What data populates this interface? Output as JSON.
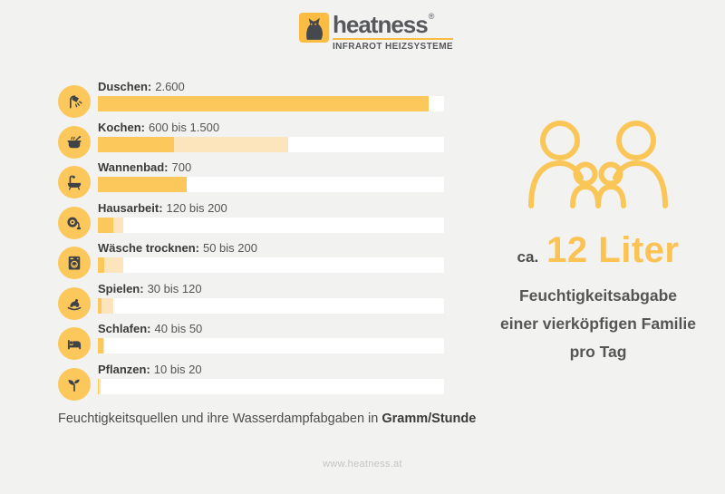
{
  "colors": {
    "accent": "#FCC75B",
    "accent_light": "#FCE5BD",
    "logo_yellow": "#FBBC43",
    "text_dark": "#3b3b3b",
    "background": "#F2F2F1",
    "bar_track": "#FFFFFF"
  },
  "logo": {
    "brand": "heatness",
    "registered": "®",
    "tagline": "INFRAROT HEIZSYSTEME",
    "icon": "cat-icon"
  },
  "chart_data": {
    "type": "bar",
    "orientation": "horizontal",
    "unit": "Gramm/Stunde",
    "scale_max": 2722,
    "grid": false,
    "legend": false,
    "rows": [
      {
        "label": "Duschen",
        "label_bold": "Duschen:",
        "value_text": "2.600",
        "min": 2600,
        "max": 2600,
        "icon": "shower-icon"
      },
      {
        "label": "Kochen",
        "label_bold": "Kochen:",
        "value_text": "600 bis 1.500",
        "min": 600,
        "max": 1500,
        "icon": "cooking-pot-icon"
      },
      {
        "label": "Wannenbad",
        "label_bold": "Wannenbad:",
        "value_text": "700",
        "min": 700,
        "max": 700,
        "icon": "bathtub-icon"
      },
      {
        "label": "Hausarbeit",
        "label_bold": "Hausarbeit:",
        "value_text": "120 bis 200",
        "min": 120,
        "max": 200,
        "icon": "vacuum-icon"
      },
      {
        "label": "Wäsche trocknen",
        "label_bold": "Wäsche trocknen:",
        "value_text": "50 bis 200",
        "min": 50,
        "max": 200,
        "icon": "washing-machine-icon"
      },
      {
        "label": "Spielen",
        "label_bold": "Spielen:",
        "value_text": "30 bis 120",
        "min": 30,
        "max": 120,
        "icon": "rocking-horse-icon"
      },
      {
        "label": "Schlafen",
        "label_bold": "Schlafen:",
        "value_text": "40 bis 50",
        "min": 40,
        "max": 50,
        "icon": "bed-icon"
      },
      {
        "label": "Pflanzen",
        "label_bold": "Pflanzen:",
        "value_text": "10 bis 20",
        "min": 10,
        "max": 20,
        "icon": "plant-icon"
      }
    ],
    "caption_regular": "Feuchtigkeitsquellen und ihre Wasserdampfabgaben in",
    "caption_bold": "Gramm/Stunde"
  },
  "summary": {
    "icon": "family-icon",
    "prefix": "ca.",
    "headline": "12 Liter",
    "line1": "Feuchtigkeitsabgabe",
    "line2": "einer vierköpfigen Familie",
    "line3": "pro Tag"
  },
  "footer": {
    "website": "www.heatness.at"
  }
}
